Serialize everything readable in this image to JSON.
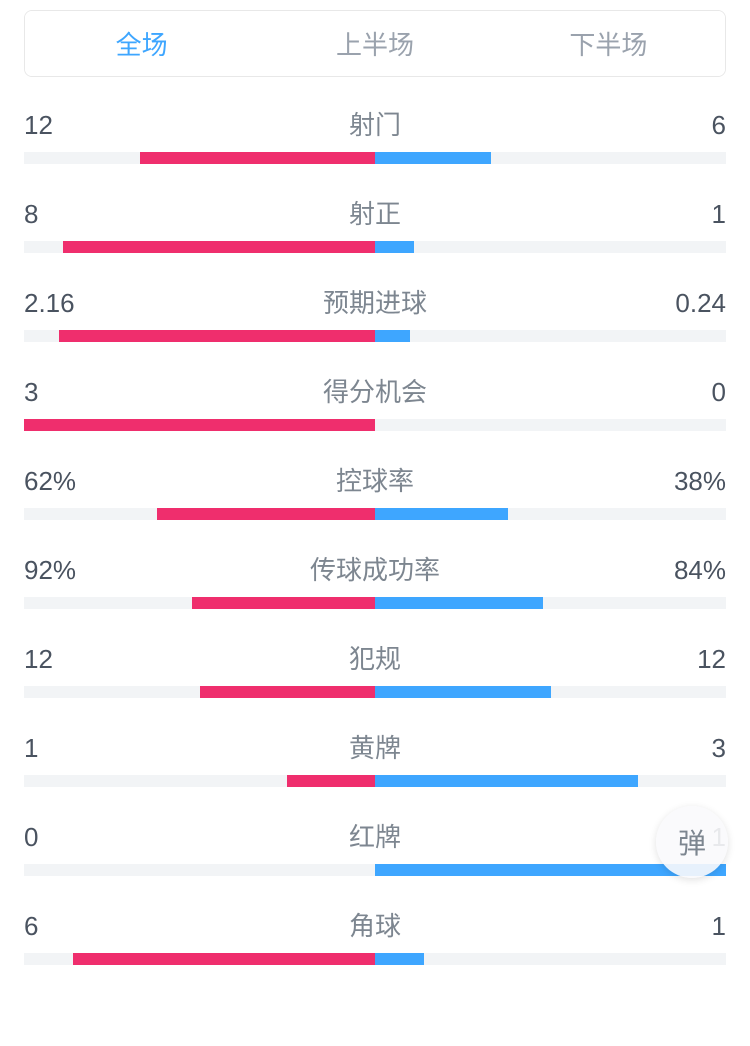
{
  "colors": {
    "home": "#ef2e6d",
    "away": "#3ea6ff",
    "track": "#f2f4f6",
    "active_tab": "#3ea6ff",
    "inactive_tab": "#9aa2ad",
    "value_text": "#4a5360",
    "label_text": "#7d8690"
  },
  "tabs": [
    {
      "label": "全场",
      "active": true
    },
    {
      "label": "上半场",
      "active": false
    },
    {
      "label": "下半场",
      "active": false
    }
  ],
  "floating_button_label": "弹",
  "stats": [
    {
      "name": "射门",
      "home": "12",
      "away": "6",
      "home_pct": 67,
      "away_pct": 33
    },
    {
      "name": "射正",
      "home": "8",
      "away": "1",
      "home_pct": 89,
      "away_pct": 11
    },
    {
      "name": "预期进球",
      "home": "2.16",
      "away": "0.24",
      "home_pct": 90,
      "away_pct": 10
    },
    {
      "name": "得分机会",
      "home": "3",
      "away": "0",
      "home_pct": 100,
      "away_pct": 0
    },
    {
      "name": "控球率",
      "home": "62%",
      "away": "38%",
      "home_pct": 62,
      "away_pct": 38
    },
    {
      "name": "传球成功率",
      "home": "92%",
      "away": "84%",
      "home_pct": 52,
      "away_pct": 48
    },
    {
      "name": "犯规",
      "home": "12",
      "away": "12",
      "home_pct": 50,
      "away_pct": 50
    },
    {
      "name": "黄牌",
      "home": "1",
      "away": "3",
      "home_pct": 25,
      "away_pct": 75
    },
    {
      "name": "红牌",
      "home": "0",
      "away": "1",
      "home_pct": 0,
      "away_pct": 100
    },
    {
      "name": "角球",
      "home": "6",
      "away": "1",
      "home_pct": 86,
      "away_pct": 14
    }
  ]
}
